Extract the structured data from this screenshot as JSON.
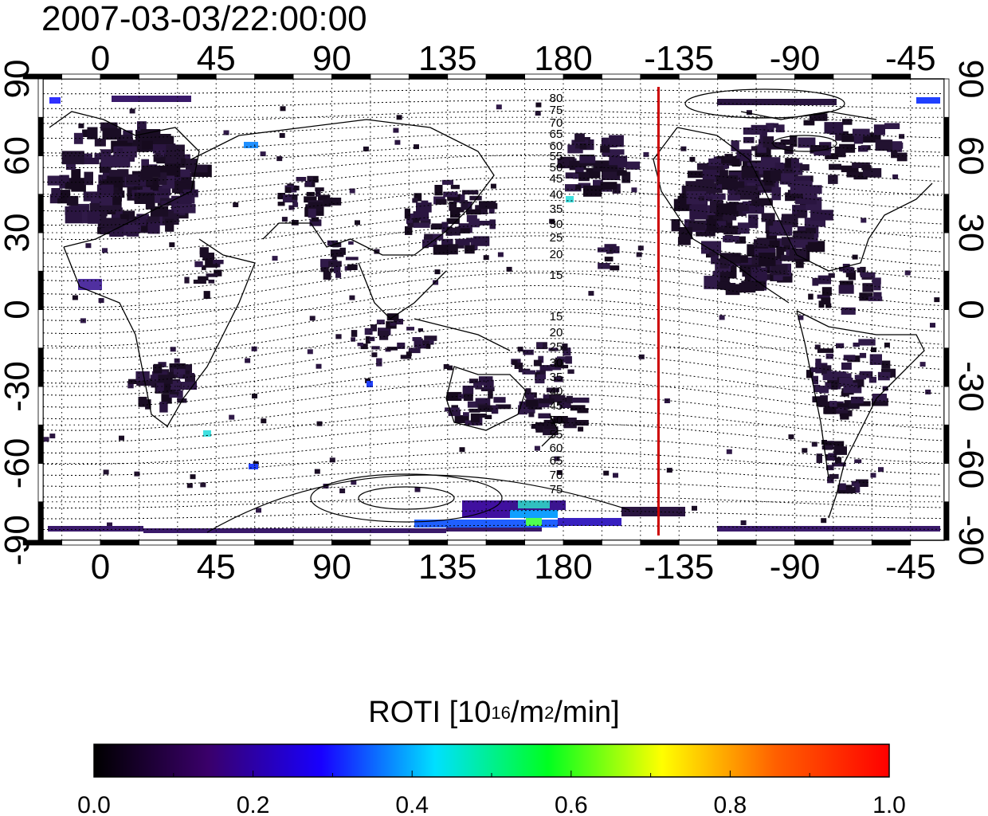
{
  "map": {
    "timestamp": "2007-03-03/22:00:00",
    "lon_ticks": [
      "0",
      "45",
      "90",
      "135",
      "180",
      "-135",
      "-90",
      "-45"
    ],
    "lat_ticks": [
      "90",
      "60",
      "30",
      "0",
      "-30",
      "-60",
      "-90"
    ],
    "contour_labels": [
      "80",
      "75",
      "70",
      "65",
      "60",
      "55",
      "50",
      "45",
      "40",
      "35",
      "30",
      "25",
      "20",
      "15",
      "15",
      "20",
      "25",
      "30",
      "35",
      "40",
      "45",
      "50",
      "55",
      "60",
      "65",
      "70",
      "75"
    ],
    "terminator_longitude": -143,
    "colors": {
      "terminator": "#cc0000",
      "land_outline": "#000000",
      "grid": "#000000"
    }
  },
  "colorbar": {
    "title_prefix": "ROTI  [10",
    "title_sup1": "16",
    "title_mid": "/m",
    "title_sup2": "2",
    "title_suffix": "/min]",
    "ticks": [
      "0.0",
      "0.2",
      "0.4",
      "0.6",
      "0.8",
      "1.0"
    ],
    "range": [
      0.0,
      1.0
    ],
    "colormap_stops": [
      "#000000",
      "#3a006a",
      "#1800ff",
      "#00e0ff",
      "#00ff20",
      "#ffff00",
      "#ff6000",
      "#ff0000"
    ]
  }
}
